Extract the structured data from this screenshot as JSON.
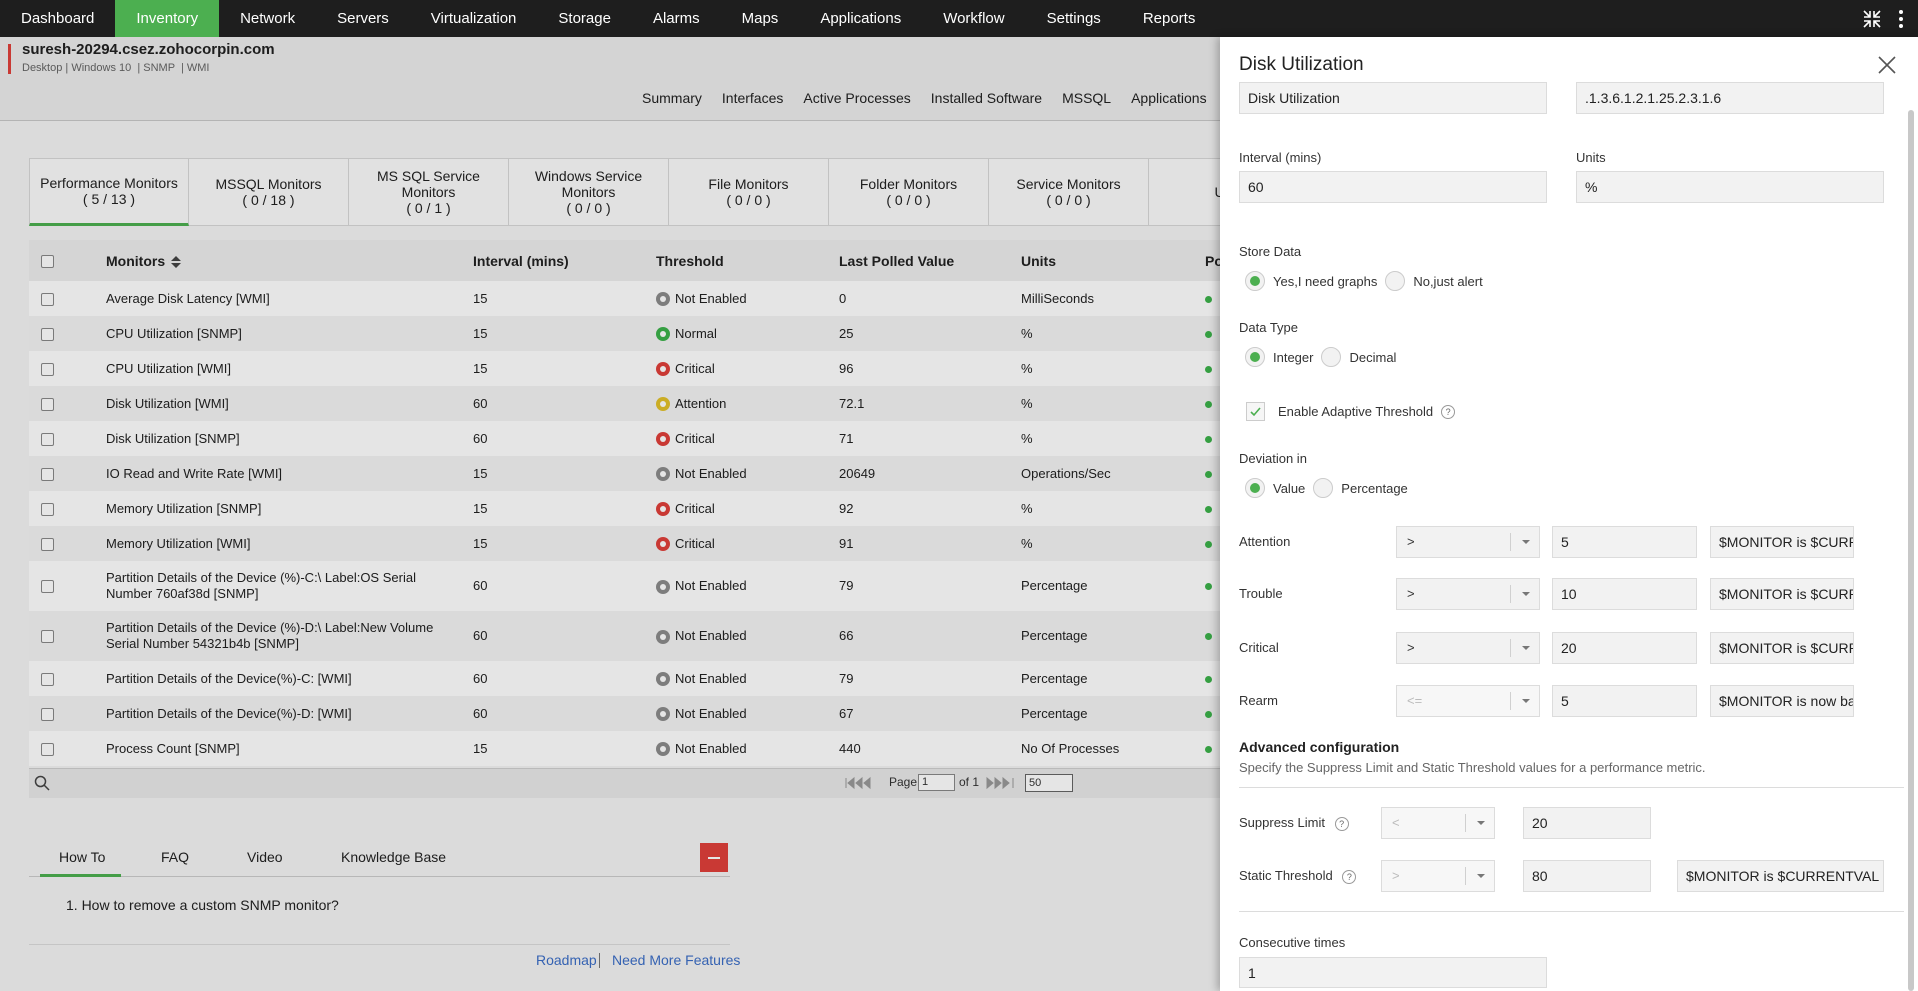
{
  "nav": [
    "Dashboard",
    "Inventory",
    "Network",
    "Servers",
    "Virtualization",
    "Storage",
    "Alarms",
    "Maps",
    "Applications",
    "Workflow",
    "Settings",
    "Reports"
  ],
  "device": {
    "name": "suresh-20294.csez.zohocorpin.com",
    "meta": "Desktop | Windows 10  | SNMP  | WMI"
  },
  "subtabs": [
    "Summary",
    "Interfaces",
    "Active Processes",
    "Installed Software",
    "MSSQL",
    "Applications"
  ],
  "monitor_tabs": [
    {
      "label": "Performance Monitors",
      "count": "( 5 / 13 )"
    },
    {
      "label": "MSSQL Monitors",
      "count": "( 0 / 18 )"
    },
    {
      "label": "MS SQL Service Monitors",
      "count": "( 0 / 1 )"
    },
    {
      "label": "Windows Service Monitors",
      "count": "( 0 / 0 )"
    },
    {
      "label": "File Monitors",
      "count": "( 0 / 0 )"
    },
    {
      "label": "Folder Monitors",
      "count": "( 0 / 0 )"
    },
    {
      "label": "Service Monitors",
      "count": "( 0 / 0 )"
    },
    {
      "label": "URL"
    }
  ],
  "table": {
    "columns": [
      "Monitors",
      "Interval (mins)",
      "Threshold",
      "Last Polled Value",
      "Units",
      "Po"
    ],
    "rows": [
      {
        "name": "Average Disk Latency [WMI]",
        "interval": 15,
        "threshold": "Not Enabled",
        "threshold_color": "#8c8c8c",
        "last_value": 0,
        "units": "MilliSeconds"
      },
      {
        "name": "CPU Utilization [SNMP]",
        "interval": 15,
        "threshold": "Normal",
        "threshold_color": "#3cb24a",
        "last_value": 25,
        "units": "%"
      },
      {
        "name": "CPU Utilization [WMI]",
        "interval": 15,
        "threshold": "Critical",
        "threshold_color": "#e0403a",
        "last_value": 96,
        "units": "%"
      },
      {
        "name": "Disk Utilization [WMI]",
        "interval": 60,
        "threshold": "Attention",
        "threshold_color": "#e2c12a",
        "last_value": 72.1,
        "units": "%"
      },
      {
        "name": "Disk Utilization [SNMP]",
        "interval": 60,
        "threshold": "Critical",
        "threshold_color": "#e0403a",
        "last_value": 71,
        "units": "%"
      },
      {
        "name": "IO Read and Write Rate [WMI]",
        "interval": 15,
        "threshold": "Not Enabled",
        "threshold_color": "#8c8c8c",
        "last_value": 20649,
        "units": "Operations/Sec"
      },
      {
        "name": "Memory Utilization [SNMP]",
        "interval": 15,
        "threshold": "Critical",
        "threshold_color": "#e0403a",
        "last_value": 92,
        "units": "%"
      },
      {
        "name": "Memory Utilization [WMI]",
        "interval": 15,
        "threshold": "Critical",
        "threshold_color": "#e0403a",
        "last_value": 91,
        "units": "%"
      },
      {
        "name": "Partition Details of the Device (%)-C:\\ Label:OS Serial Number 760af38d [SNMP]",
        "interval": 60,
        "threshold": "Not Enabled",
        "threshold_color": "#8c8c8c",
        "last_value": 79,
        "units": "Percentage"
      },
      {
        "name": "Partition Details of the Device (%)-D:\\ Label:New Volume Serial Number 54321b4b [SNMP]",
        "interval": 60,
        "threshold": "Not Enabled",
        "threshold_color": "#8c8c8c",
        "last_value": 66,
        "units": "Percentage"
      },
      {
        "name": "Partition Details of the Device(%)-C: [WMI]",
        "interval": 60,
        "threshold": "Not Enabled",
        "threshold_color": "#8c8c8c",
        "last_value": 79,
        "units": "Percentage"
      },
      {
        "name": "Partition Details of the Device(%)-D: [WMI]",
        "interval": 60,
        "threshold": "Not Enabled",
        "threshold_color": "#8c8c8c",
        "last_value": 67,
        "units": "Percentage"
      },
      {
        "name": "Process Count [SNMP]",
        "interval": 15,
        "threshold": "Not Enabled",
        "threshold_color": "#8c8c8c",
        "last_value": 440,
        "units": "No Of Processes"
      }
    ]
  },
  "pagination": {
    "page_label": "Page",
    "page": 1,
    "of": "of 1",
    "per_page": 50
  },
  "help": {
    "tabs": [
      "How To",
      "FAQ",
      "Video",
      "Knowledge Base"
    ],
    "items": [
      "1. How to remove a custom SNMP monitor?"
    ],
    "links": [
      "Roadmap",
      "Need More Features"
    ]
  },
  "panel": {
    "title": "Disk Utilization",
    "help_mark": "?",
    "name_value": "Disk Utilization",
    "oid_value": ".1.3.6.1.2.1.25.2.3.1.6",
    "interval": {
      "label": "Interval (mins)",
      "value": 60
    },
    "units": {
      "label": "Units",
      "value": "%"
    },
    "store_data": {
      "label": "Store Data",
      "options": [
        "Yes,I need graphs",
        "No,just alert"
      ],
      "selected": 0
    },
    "data_type": {
      "label": "Data Type",
      "options": [
        "Integer",
        "Decimal"
      ],
      "selected": 0
    },
    "adaptive": {
      "label": "Enable Adaptive Threshold",
      "checked": true
    },
    "deviation": {
      "label": "Deviation in",
      "options": [
        "Value",
        "Percentage"
      ],
      "selected": 0
    },
    "thresholds": [
      {
        "label": "Attention",
        "operator": ">",
        "value": 5,
        "message": "$MONITOR is $CURRENTVAL"
      },
      {
        "label": "Trouble",
        "operator": ">",
        "value": 10,
        "message": "$MONITOR is $CURRENTVAL"
      },
      {
        "label": "Critical",
        "operator": ">",
        "value": 20,
        "message": "$MONITOR is $CURRENTVAL"
      },
      {
        "label": "Rearm",
        "operator": "<=",
        "value": 5,
        "message": "$MONITOR is now ba",
        "disabled": true
      }
    ],
    "advanced": {
      "title": "Advanced configuration",
      "description": "Specify the Suppress Limit and Static Threshold values for a performance metric."
    },
    "suppress": {
      "label": "Suppress Limit",
      "operator": "<",
      "value": 20
    },
    "static": {
      "label": "Static Threshold",
      "operator": ">",
      "value": 80,
      "message": "$MONITOR is $CURRENTVAL"
    },
    "consecutive": {
      "label": "Consecutive times",
      "value": 1
    }
  }
}
